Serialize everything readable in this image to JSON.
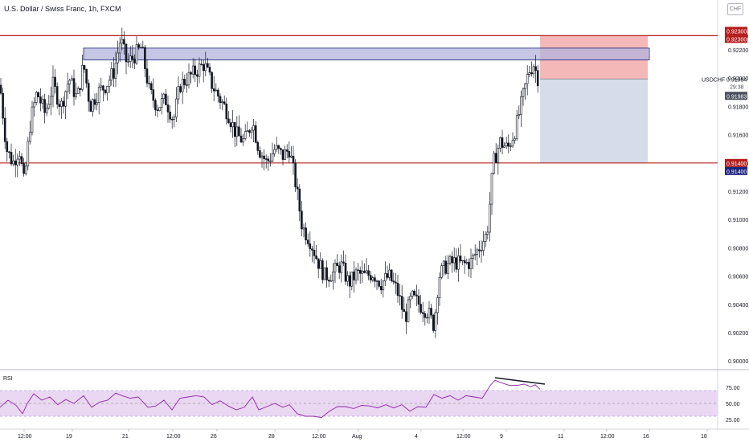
{
  "header": {
    "symbol_title": "U.S. Dollar / Swiss Franc, 1h, FXCM",
    "currency_button": "CHF"
  },
  "colors": {
    "candle": "#131722",
    "resistance_line": "#b71c1c",
    "support_line": "#b71c1c",
    "zone_fill": "#b3b3dc",
    "zone_border": "#1a237e",
    "stop_zone": "#f3b0b0",
    "target_zone": "#d3dae9",
    "rsi_line": "#8e24aa",
    "rsi_band": "#ead7f2",
    "divergence_line": "#131722",
    "price_label_red": "#b71c1c",
    "price_label_navy": "#1a237e",
    "price_label_gray": "#4a4f5c"
  },
  "chart_data": [
    {
      "type": "candlestick",
      "title": "U.S. Dollar / Swiss Franc, 1h, FXCM",
      "symbol": "USDCHF",
      "ylim": [
        0.8995,
        0.9245
      ],
      "y_ticks": [
        "0.92300",
        "0.92200",
        "0.92000",
        "0.91800",
        "0.91600",
        "0.91400",
        "0.91200",
        "0.91000",
        "0.90800",
        "0.90600",
        "0.90400",
        "0.90200",
        "0.90000"
      ],
      "x_ticks": [
        "12:00",
        "19",
        "21",
        "12:00",
        "26",
        "28",
        "12:00",
        "Aug",
        "4",
        "12:00",
        "9",
        "11",
        "12:00",
        "16",
        "18"
      ],
      "price_path": [
        [
          0,
          0.9195
        ],
        [
          8,
          0.915
        ],
        [
          16,
          0.914
        ],
        [
          24,
          0.915
        ],
        [
          30,
          0.9125
        ],
        [
          38,
          0.917
        ],
        [
          46,
          0.919
        ],
        [
          56,
          0.9175
        ],
        [
          66,
          0.9195
        ],
        [
          76,
          0.918
        ],
        [
          86,
          0.92
        ],
        [
          96,
          0.9185
        ],
        [
          104,
          0.921
        ],
        [
          112,
          0.918
        ],
        [
          122,
          0.919
        ],
        [
          132,
          0.9195
        ],
        [
          142,
          0.9205
        ],
        [
          150,
          0.9228
        ],
        [
          158,
          0.921
        ],
        [
          166,
          0.9215
        ],
        [
          176,
          0.9222
        ],
        [
          186,
          0.919
        ],
        [
          196,
          0.918
        ],
        [
          206,
          0.9185
        ],
        [
          216,
          0.917
        ],
        [
          224,
          0.9195
        ],
        [
          234,
          0.92
        ],
        [
          244,
          0.9205
        ],
        [
          254,
          0.921
        ],
        [
          264,
          0.9195
        ],
        [
          274,
          0.9185
        ],
        [
          284,
          0.9175
        ],
        [
          294,
          0.916
        ],
        [
          304,
          0.9155
        ],
        [
          314,
          0.917
        ],
        [
          322,
          0.915
        ],
        [
          332,
          0.914
        ],
        [
          342,
          0.915
        ],
        [
          352,
          0.9145
        ],
        [
          360,
          0.915
        ],
        [
          368,
          0.9125
        ],
        [
          376,
          0.9095
        ],
        [
          386,
          0.9085
        ],
        [
          396,
          0.907
        ],
        [
          404,
          0.906
        ],
        [
          414,
          0.9062
        ],
        [
          424,
          0.9068
        ],
        [
          434,
          0.9055
        ],
        [
          444,
          0.9062
        ],
        [
          454,
          0.906
        ],
        [
          464,
          0.9062
        ],
        [
          474,
          0.9055
        ],
        [
          484,
          0.906
        ],
        [
          494,
          0.905
        ],
        [
          504,
          0.903
        ],
        [
          512,
          0.9045
        ],
        [
          522,
          0.904
        ],
        [
          532,
          0.9035
        ],
        [
          540,
          0.9025
        ],
        [
          546,
          0.906
        ],
        [
          556,
          0.9068
        ],
        [
          566,
          0.907
        ],
        [
          576,
          0.9068
        ],
        [
          586,
          0.907
        ],
        [
          596,
          0.908
        ],
        [
          606,
          0.909
        ],
        [
          614,
          0.914
        ],
        [
          622,
          0.9155
        ],
        [
          632,
          0.915
        ],
        [
          642,
          0.9165
        ],
        [
          650,
          0.9185
        ],
        [
          658,
          0.9205
        ],
        [
          664,
          0.921
        ],
        [
          670,
          0.9199
        ]
      ],
      "horizontal_levels": [
        {
          "price": 0.923,
          "label": "0.92300"
        },
        {
          "price": 0.914,
          "label": "0.91400"
        }
      ],
      "resistance_zone": {
        "low": 0.92128,
        "high": 0.92212
      },
      "position_tool": {
        "entry": 0.91994,
        "stop": 0.923,
        "target": 0.914
      },
      "current_price": {
        "symbol": "USDCHF",
        "price": "0.91994",
        "countdown": "29:38",
        "secondary": "0.91983"
      },
      "price_axis_labels": [
        "0.92300",
        "0.92300",
        "0.91400",
        "0.91400"
      ]
    },
    {
      "type": "line",
      "title": "RSI",
      "ylim": [
        15,
        100
      ],
      "y_ticks": [
        "75.00",
        "50.00",
        "25.00"
      ],
      "band": [
        30,
        70
      ],
      "midline": 50,
      "rsi_path": [
        [
          0,
          44
        ],
        [
          10,
          55
        ],
        [
          20,
          47
        ],
        [
          28,
          34
        ],
        [
          34,
          50
        ],
        [
          42,
          65
        ],
        [
          52,
          55
        ],
        [
          62,
          60
        ],
        [
          72,
          48
        ],
        [
          82,
          56
        ],
        [
          92,
          50
        ],
        [
          104,
          62
        ],
        [
          114,
          44
        ],
        [
          124,
          52
        ],
        [
          134,
          55
        ],
        [
          144,
          66
        ],
        [
          152,
          62
        ],
        [
          162,
          58
        ],
        [
          172,
          60
        ],
        [
          184,
          44
        ],
        [
          194,
          46
        ],
        [
          204,
          55
        ],
        [
          214,
          40
        ],
        [
          224,
          58
        ],
        [
          234,
          60
        ],
        [
          244,
          62
        ],
        [
          254,
          60
        ],
        [
          264,
          48
        ],
        [
          274,
          54
        ],
        [
          284,
          46
        ],
        [
          294,
          40
        ],
        [
          304,
          44
        ],
        [
          314,
          60
        ],
        [
          322,
          40
        ],
        [
          332,
          45
        ],
        [
          342,
          50
        ],
        [
          352,
          44
        ],
        [
          360,
          48
        ],
        [
          370,
          34
        ],
        [
          380,
          30
        ],
        [
          390,
          30
        ],
        [
          400,
          28
        ],
        [
          410,
          38
        ],
        [
          420,
          45
        ],
        [
          430,
          45
        ],
        [
          440,
          42
        ],
        [
          450,
          47
        ],
        [
          460,
          46
        ],
        [
          470,
          43
        ],
        [
          480,
          48
        ],
        [
          490,
          43
        ],
        [
          500,
          48
        ],
        [
          510,
          38
        ],
        [
          520,
          45
        ],
        [
          530,
          44
        ],
        [
          540,
          64
        ],
        [
          550,
          58
        ],
        [
          560,
          62
        ],
        [
          570,
          55
        ],
        [
          580,
          62
        ],
        [
          590,
          60
        ],
        [
          600,
          58
        ],
        [
          610,
          78
        ],
        [
          616,
          86
        ],
        [
          624,
          82
        ],
        [
          634,
          78
        ],
        [
          644,
          78
        ],
        [
          652,
          80
        ],
        [
          660,
          76
        ],
        [
          666,
          79
        ],
        [
          672,
          72
        ]
      ],
      "divergence_line_values": [
        90,
        80
      ]
    }
  ]
}
